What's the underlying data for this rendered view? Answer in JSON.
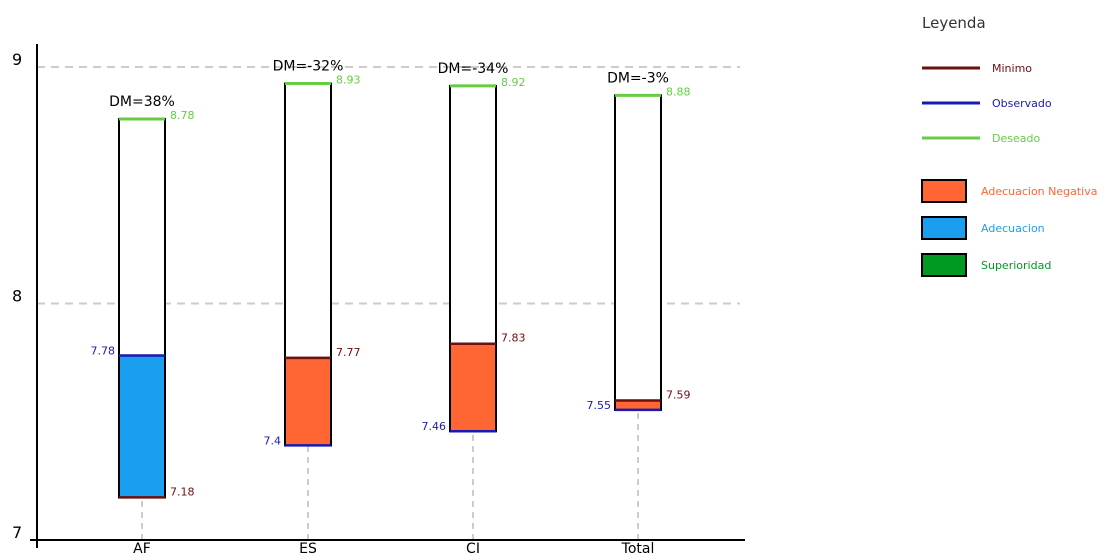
{
  "chart_data": {
    "type": "bar",
    "categories": [
      "AF",
      "ES",
      "CI",
      "Total"
    ],
    "minimo": [
      7.18,
      7.77,
      7.83,
      7.59
    ],
    "observado": [
      7.78,
      7.4,
      7.46,
      7.55
    ],
    "deseado": [
      8.78,
      8.93,
      8.92,
      8.88
    ],
    "dm_labels": [
      "DM=38%",
      "DM=-32%",
      "DM=-34%",
      "DM=-3%"
    ],
    "ylim": [
      7,
      9
    ],
    "yticks": [
      "7",
      "8",
      "9"
    ],
    "grid": true,
    "legend": {
      "title": "Leyenda",
      "placement": "right",
      "lines": [
        {
          "label": "Minimo",
          "color": "#6b0f0f"
        },
        {
          "label": "Observado",
          "color": "#1a1ab3"
        },
        {
          "label": "Deseado",
          "color": "#66cc44"
        }
      ],
      "boxes": [
        {
          "label": "Adecuacion Negativa",
          "color": "#ff6633",
          "text_color": "#ff6633"
        },
        {
          "label": "Adecuacion",
          "color": "#1a9ff0",
          "text_color": "#1a9ff0"
        },
        {
          "label": "Superioridad",
          "color": "#009922",
          "text_color": "#009922"
        }
      ]
    },
    "colors": {
      "minimo": "#6b0f0f",
      "observado": "#1a1ab3",
      "deseado": "#66cc44",
      "adecuacion": "#1a9ff0",
      "adecuacion_negativa": "#ff6633",
      "superioridad": "#009922"
    }
  }
}
